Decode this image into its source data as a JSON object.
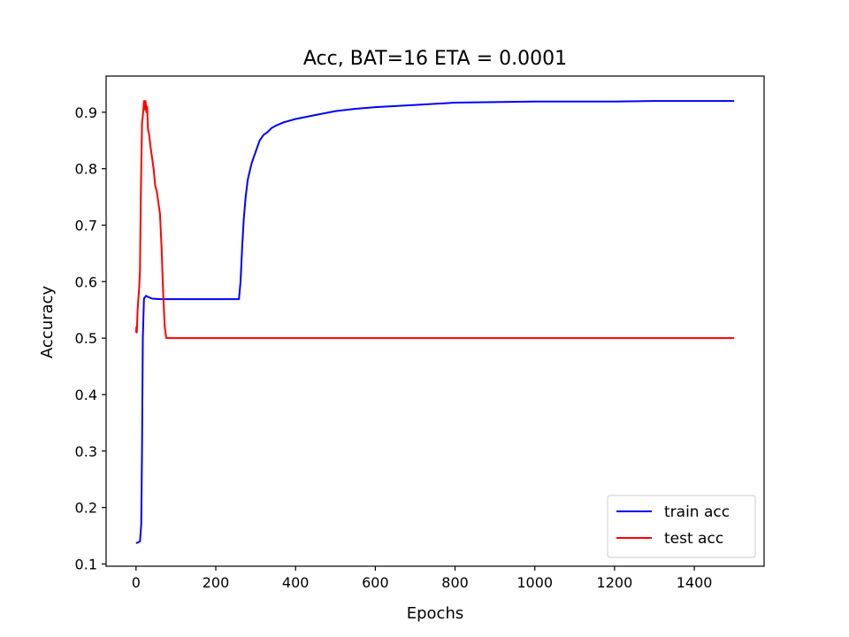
{
  "chart_data": {
    "type": "line",
    "title": "Acc, BAT=16 ETA = 0.0001",
    "xlabel": "Epochs",
    "ylabel": "Accuracy",
    "xlim": [
      -75,
      1575
    ],
    "ylim": [
      0.096,
      0.964
    ],
    "xticks": [
      0,
      200,
      400,
      600,
      800,
      1000,
      1200,
      1400
    ],
    "yticks": [
      0.1,
      0.2,
      0.3,
      0.4,
      0.5,
      0.6,
      0.7,
      0.8,
      0.9
    ],
    "grid": false,
    "legend_position": "lower-right",
    "series": [
      {
        "name": "train acc",
        "color": "#0000ff",
        "x": [
          0,
          5,
          10,
          13,
          15,
          17,
          20,
          25,
          30,
          40,
          60,
          100,
          150,
          200,
          250,
          258,
          262,
          266,
          270,
          275,
          280,
          285,
          290,
          300,
          310,
          320,
          330,
          340,
          350,
          370,
          400,
          450,
          500,
          550,
          600,
          700,
          800,
          900,
          1000,
          1100,
          1200,
          1300,
          1400,
          1500
        ],
        "y": [
          0.137,
          0.138,
          0.14,
          0.17,
          0.3,
          0.5,
          0.57,
          0.575,
          0.573,
          0.57,
          0.569,
          0.569,
          0.569,
          0.569,
          0.569,
          0.569,
          0.6,
          0.66,
          0.71,
          0.75,
          0.78,
          0.795,
          0.81,
          0.83,
          0.85,
          0.86,
          0.865,
          0.872,
          0.876,
          0.882,
          0.888,
          0.895,
          0.902,
          0.906,
          0.909,
          0.913,
          0.917,
          0.918,
          0.919,
          0.919,
          0.919,
          0.92,
          0.92,
          0.92
        ]
      },
      {
        "name": "test acc",
        "color": "#ff0000",
        "x": [
          0,
          1,
          2,
          4,
          6,
          8,
          10,
          12,
          15,
          18,
          20,
          22,
          24,
          26,
          28,
          30,
          33,
          36,
          40,
          44,
          48,
          52,
          56,
          60,
          64,
          68,
          72,
          76,
          80,
          100,
          200,
          400,
          600,
          800,
          1000,
          1200,
          1400,
          1500
        ],
        "y": [
          0.51,
          0.52,
          0.51,
          0.55,
          0.57,
          0.59,
          0.62,
          0.75,
          0.88,
          0.9,
          0.92,
          0.905,
          0.92,
          0.9,
          0.91,
          0.87,
          0.86,
          0.84,
          0.82,
          0.8,
          0.77,
          0.76,
          0.74,
          0.72,
          0.66,
          0.58,
          0.52,
          0.5,
          0.5,
          0.5,
          0.5,
          0.5,
          0.5,
          0.5,
          0.5,
          0.5,
          0.5,
          0.5
        ]
      }
    ]
  }
}
